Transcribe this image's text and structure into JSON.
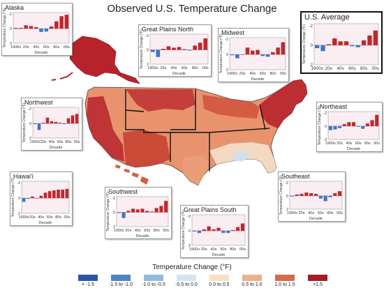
{
  "title": "Observed U.S. Temperature Change",
  "map": {
    "legend": {
      "title": "Temperature Change (°F)",
      "classes": [
        {
          "label": "< -1.5",
          "color": "#2a56a8"
        },
        {
          "label": "-1.5 to -1.0",
          "color": "#4f83c5"
        },
        {
          "label": "-1.0 to -0.5",
          "color": "#93b8df"
        },
        {
          "label": "-0.5 to 0.0",
          "color": "#d4e4f2"
        },
        {
          "label": "0.0 to 0.5",
          "color": "#f7dfc6"
        },
        {
          "label": "0.5 to 1.0",
          "color": "#eeb08a"
        },
        {
          "label": "1.0 to 1.5",
          "color": "#d86a4e"
        },
        {
          "label": ">1.5",
          "color": "#a81c24"
        }
      ]
    }
  },
  "chart_data": [
    {
      "type": "bar",
      "region": "Alaska",
      "title": "Alaska",
      "ylabel": "Temperature Change (°F)",
      "xlabel": "Decade",
      "categories": [
        "1900s",
        "10s",
        "20s",
        "30s",
        "40s",
        "50s",
        "60s",
        "70s",
        "80s",
        "90s",
        "00s"
      ],
      "tick_labels": [
        "1900s",
        "20s",
        "40s",
        "60s",
        "80s",
        "00s"
      ],
      "yticks": [
        "-2",
        "0",
        "2"
      ],
      "ylim": [
        -2,
        2.2
      ],
      "values": [
        0.1,
        0.1,
        0.45,
        0.35,
        0.2,
        -0.45,
        -0.4,
        0.3,
        1.0,
        1.7,
        1.9
      ]
    },
    {
      "type": "bar",
      "region": "Great Plains North",
      "title": "Great Plains North",
      "ylabel": "Temperature Change (°F)",
      "xlabel": "Decade",
      "categories": [
        "1900s",
        "10s",
        "20s",
        "30s",
        "40s",
        "50s",
        "60s",
        "70s",
        "80s",
        "90s",
        "00s"
      ],
      "tick_labels": [
        "1900s",
        "20s",
        "40s",
        "60s",
        "80s",
        "00s"
      ],
      "yticks": [
        "-2",
        "0",
        "2"
      ],
      "ylim": [
        -2,
        2.2
      ],
      "values": [
        -0.3,
        -1.0,
        0.15,
        0.5,
        0.3,
        0.4,
        0.1,
        -0.1,
        0.6,
        1.0,
        1.6
      ]
    },
    {
      "type": "bar",
      "region": "Midwest",
      "title": "Midwest",
      "ylabel": "Temperature Change (°F)",
      "xlabel": "Decade",
      "categories": [
        "1900s",
        "10s",
        "20s",
        "30s",
        "40s",
        "50s",
        "60s",
        "70s",
        "80s",
        "90s",
        "00s"
      ],
      "tick_labels": [
        "1900s",
        "20s",
        "40s",
        "60s",
        "80s",
        "00s"
      ],
      "yticks": [
        "-2",
        "0",
        "2"
      ],
      "ylim": [
        -2,
        2.2
      ],
      "values": [
        -0.1,
        -0.5,
        0.0,
        0.9,
        0.5,
        0.6,
        -0.2,
        -0.3,
        0.3,
        0.9,
        1.6
      ]
    },
    {
      "type": "bar",
      "region": "U.S. Average",
      "title": "U.S. Average",
      "ylabel": "Temperature Change (°F)",
      "xlabel": "",
      "categories": [
        "1900s",
        "10s",
        "20s",
        "30s",
        "40s",
        "50s",
        "60s",
        "70s",
        "80s",
        "90s",
        "00s"
      ],
      "tick_labels": [
        "1900s",
        "20s",
        "40s",
        "60s",
        "80s",
        "00s"
      ],
      "yticks": [
        "-2",
        "0",
        "2"
      ],
      "ylim": [
        -2,
        2.2
      ],
      "values": [
        -0.3,
        -0.6,
        0.1,
        0.7,
        0.4,
        0.4,
        -0.1,
        -0.2,
        0.5,
        1.0,
        1.5
      ]
    },
    {
      "type": "bar",
      "region": "Northwest",
      "title": "Northwest",
      "ylabel": "Temperature Change (°F)",
      "xlabel": "Decade",
      "categories": [
        "1900s",
        "10s",
        "20s",
        "30s",
        "40s",
        "50s",
        "60s",
        "70s",
        "80s",
        "90s",
        "00s"
      ],
      "tick_labels": [
        "1900s",
        "20s",
        "40s",
        "60s",
        "80s",
        "00s"
      ],
      "yticks": [
        "-2",
        "0",
        "2"
      ],
      "ylim": [
        -2,
        2.2
      ],
      "values": [
        -0.1,
        -0.9,
        0.1,
        0.8,
        0.3,
        0.2,
        0.1,
        -0.1,
        0.7,
        1.1,
        1.3
      ]
    },
    {
      "type": "bar",
      "region": "Northeast",
      "title": "Northeast",
      "ylabel": "Temperature Change (°F)",
      "xlabel": "Decade",
      "categories": [
        "1900s",
        "10s",
        "20s",
        "30s",
        "40s",
        "50s",
        "60s",
        "70s",
        "80s",
        "90s",
        "00s"
      ],
      "tick_labels": [
        "1900s",
        "20s",
        "40s",
        "60s",
        "80s",
        "00s"
      ],
      "yticks": [
        "-2",
        "0",
        "2"
      ],
      "ylim": [
        -2,
        2.2
      ],
      "values": [
        -0.6,
        -0.5,
        -0.3,
        0.3,
        0.6,
        0.6,
        -0.1,
        -0.4,
        0.4,
        0.9,
        1.7
      ]
    },
    {
      "type": "bar",
      "region": "Hawai'i",
      "title": "Hawai'i",
      "ylabel": "Temperature Change (°F)",
      "xlabel": "Decade",
      "categories": [
        "1900s",
        "10s",
        "20s",
        "30s",
        "40s",
        "50s",
        "60s",
        "70s",
        "80s",
        "90s",
        "00s"
      ],
      "tick_labels": [
        "1900s",
        "20s",
        "40s",
        "60s",
        "80s",
        "00s"
      ],
      "yticks": [
        "-2",
        "0",
        "2"
      ],
      "ylim": [
        -2,
        2.2
      ],
      "values": [
        -0.5,
        -0.1,
        0.2,
        0.0,
        0.3,
        0.7,
        0.9,
        1.0,
        1.1,
        1.1,
        1.2
      ]
    },
    {
      "type": "bar",
      "region": "Southwest",
      "title": "Southwest",
      "ylabel": "Temperature Change (°F)",
      "xlabel": "Decade",
      "categories": [
        "1900s",
        "10s",
        "20s",
        "30s",
        "40s",
        "50s",
        "60s",
        "70s",
        "80s",
        "90s",
        "00s"
      ],
      "tick_labels": [
        "1900s",
        "20s",
        "40s",
        "60s",
        "80s",
        "00s"
      ],
      "yticks": [
        "-2",
        "0",
        "2"
      ],
      "ylim": [
        -2,
        2.2
      ],
      "values": [
        -0.1,
        -0.8,
        0.2,
        0.5,
        0.4,
        0.5,
        0.2,
        0.1,
        0.6,
        0.9,
        1.6
      ]
    },
    {
      "type": "bar",
      "region": "Great Plains South",
      "title": "Great Plains South",
      "ylabel": "Temperature Change (°F)",
      "xlabel": "Decade",
      "categories": [
        "1900s",
        "10s",
        "20s",
        "30s",
        "40s",
        "50s",
        "60s",
        "70s",
        "80s",
        "90s",
        "00s"
      ],
      "tick_labels": [
        "1900s",
        "20s",
        "40s",
        "60s",
        "80s",
        "00s"
      ],
      "yticks": [
        "-2",
        "0",
        "2"
      ],
      "ylim": [
        -2,
        2.2
      ],
      "values": [
        -0.1,
        -0.3,
        0.2,
        0.6,
        0.2,
        0.4,
        -0.3,
        -0.3,
        0.1,
        0.5,
        1.0
      ]
    },
    {
      "type": "bar",
      "region": "Southeast",
      "title": "Southeast",
      "ylabel": "Temperature Change (°F)",
      "xlabel": "Decade",
      "categories": [
        "1900s",
        "10s",
        "20s",
        "30s",
        "40s",
        "50s",
        "60s",
        "70s",
        "80s",
        "90s",
        "00s"
      ],
      "tick_labels": [
        "1900s",
        "20s",
        "40s",
        "60s",
        "80s",
        "00s"
      ],
      "yticks": [
        "-2",
        "0",
        "2"
      ],
      "ylim": [
        -2,
        2.2
      ],
      "values": [
        -0.1,
        0.2,
        0.3,
        0.5,
        0.4,
        0.3,
        -0.4,
        -0.8,
        -0.2,
        0.4,
        0.7
      ]
    }
  ]
}
